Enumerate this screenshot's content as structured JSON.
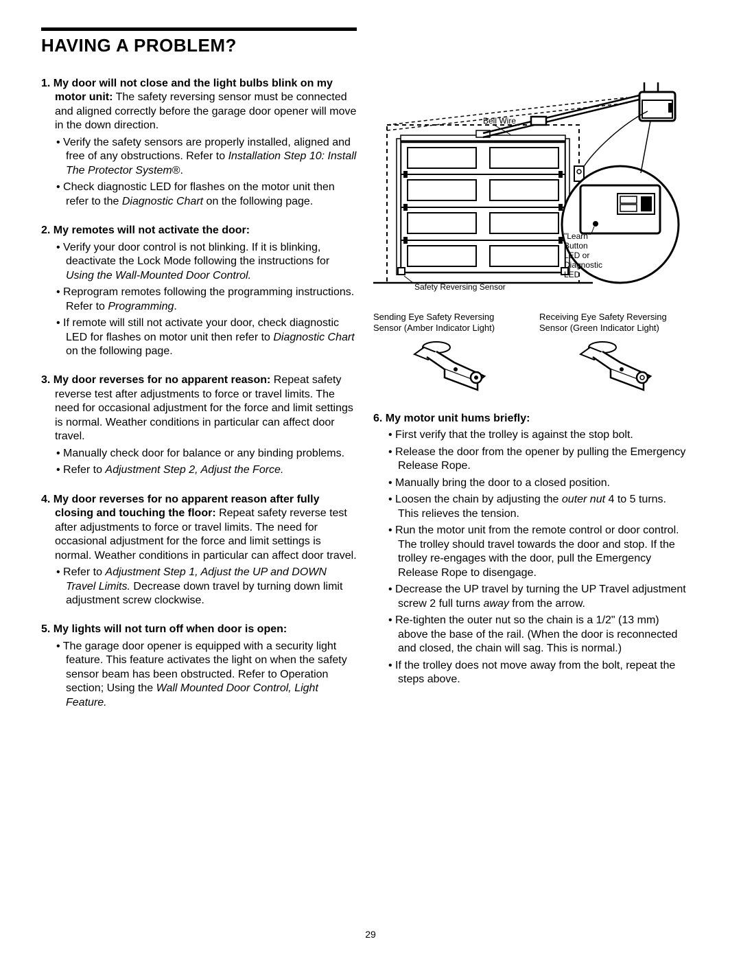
{
  "page_number": "29",
  "title": "HAVING A PROBLEM?",
  "colors": {
    "text": "#000000",
    "bg": "#ffffff",
    "rule": "#000000"
  },
  "diagram": {
    "bell_wire": "Bell Wire",
    "learn_label_l1": "\"Learn\"",
    "learn_label_l2": "Button",
    "learn_label_l3": "LED or",
    "learn_label_l4": "Diagnostic",
    "learn_label_l5": "LED",
    "safety_label": "Safety Reversing Sensor"
  },
  "sensors": {
    "left_l1": "Sending Eye Safety Reversing",
    "left_l2": "Sensor (Amber Indicator Light)",
    "right_l1": "Receiving Eye Safety Reversing",
    "right_l2": "Sensor (Green Indicator Light)"
  },
  "left_items": [
    {
      "num": "1.",
      "header": "My door will not close and the light bulbs blink on my motor unit:",
      "body": " The safety reversing sensor must be connected and aligned correctly before the garage door opener will move in the down direction.",
      "subs": [
        {
          "plain": "Verify the safety sensors are properly installed, aligned and free of any obstructions. Refer to ",
          "ital": "Installation Step 10: Install The Protector System",
          "tail": "®."
        },
        {
          "plain": "Check diagnostic LED for flashes on the motor unit then refer to the ",
          "ital": "Diagnostic Chart",
          "tail": " on the following page."
        }
      ]
    },
    {
      "num": "2.",
      "header": "My remotes will not activate the door:",
      "body": "",
      "subs": [
        {
          "plain": "Verify your door control is not blinking. If it is blinking, deactivate the Lock Mode following the instructions for ",
          "ital": "Using the Wall-Mounted Door Control.",
          "tail": ""
        },
        {
          "plain": "Reprogram remotes following the programming instructions. Refer to ",
          "ital": "Programming",
          "tail": "."
        },
        {
          "plain": "If remote will still not activate your door, check diagnostic LED for flashes on motor unit then refer to ",
          "ital": "Diagnostic Chart",
          "tail": " on the following page."
        }
      ]
    },
    {
      "num": "3.",
      "header": "My door reverses for no apparent reason:",
      "body": " Repeat safety reverse test after adjustments to force or travel limits. The need for occasional adjustment for the force and limit settings is normal. Weather conditions in particular can affect door travel.",
      "subs": [
        {
          "plain": "Manually check door for balance or any binding problems.",
          "ital": "",
          "tail": ""
        },
        {
          "plain": "Refer to ",
          "ital": "Adjustment Step 2, Adjust the Force.",
          "tail": ""
        }
      ]
    },
    {
      "num": "4.",
      "header": "My door reverses for no apparent reason after fully closing and touching the floor:",
      "body": " Repeat safety reverse test after adjustments to force or travel limits. The need for occasional adjustment for the force and limit settings is normal. Weather conditions in particular can affect door travel.",
      "subs": [
        {
          "plain": "Refer to ",
          "ital": "Adjustment Step 1, Adjust the UP and DOWN Travel Limits.",
          "tail": " Decrease down travel by turning down limit adjustment screw clockwise."
        }
      ]
    },
    {
      "num": "5.",
      "header": "My lights will not turn off when door is open:",
      "body": "",
      "subs": [
        {
          "plain": "The garage door opener is equipped with a security light feature. This feature activates the light on when the safety sensor beam has been obstructed. Refer to Operation section; Using the ",
          "ital": "Wall Mounted Door Control, Light Feature.",
          "tail": ""
        }
      ]
    }
  ],
  "right_items": [
    {
      "num": "6.",
      "header": "My motor unit hums briefly:",
      "body": "",
      "subs": [
        {
          "plain": "First verify that the trolley is against the stop bolt.",
          "ital": "",
          "tail": ""
        },
        {
          "plain": "Release the door from the opener by pulling the Emergency Release Rope.",
          "ital": "",
          "tail": ""
        },
        {
          "plain": "Manually bring the door to a closed position.",
          "ital": "",
          "tail": ""
        },
        {
          "plain": "Loosen the chain by adjusting the ",
          "ital": "outer nut",
          "tail": " 4 to 5 turns. This relieves the tension."
        },
        {
          "plain": "Run the motor unit from the remote control or door control. The trolley should travel towards the door and stop. If the trolley re-engages with the door, pull the Emergency Release Rope to disengage.",
          "ital": "",
          "tail": ""
        },
        {
          "plain": "Decrease the UP travel by turning the UP Travel adjustment screw 2 full turns ",
          "ital": "away",
          "tail": " from the arrow."
        },
        {
          "plain": "Re-tighten the outer nut so the chain is a 1/2\" (13 mm) above the base of the rail. (When the door is reconnected and closed, the chain will sag. This is normal.)",
          "ital": "",
          "tail": ""
        },
        {
          "plain": "If the trolley does not move away from the bolt, repeat the steps above.",
          "ital": "",
          "tail": ""
        }
      ]
    }
  ]
}
